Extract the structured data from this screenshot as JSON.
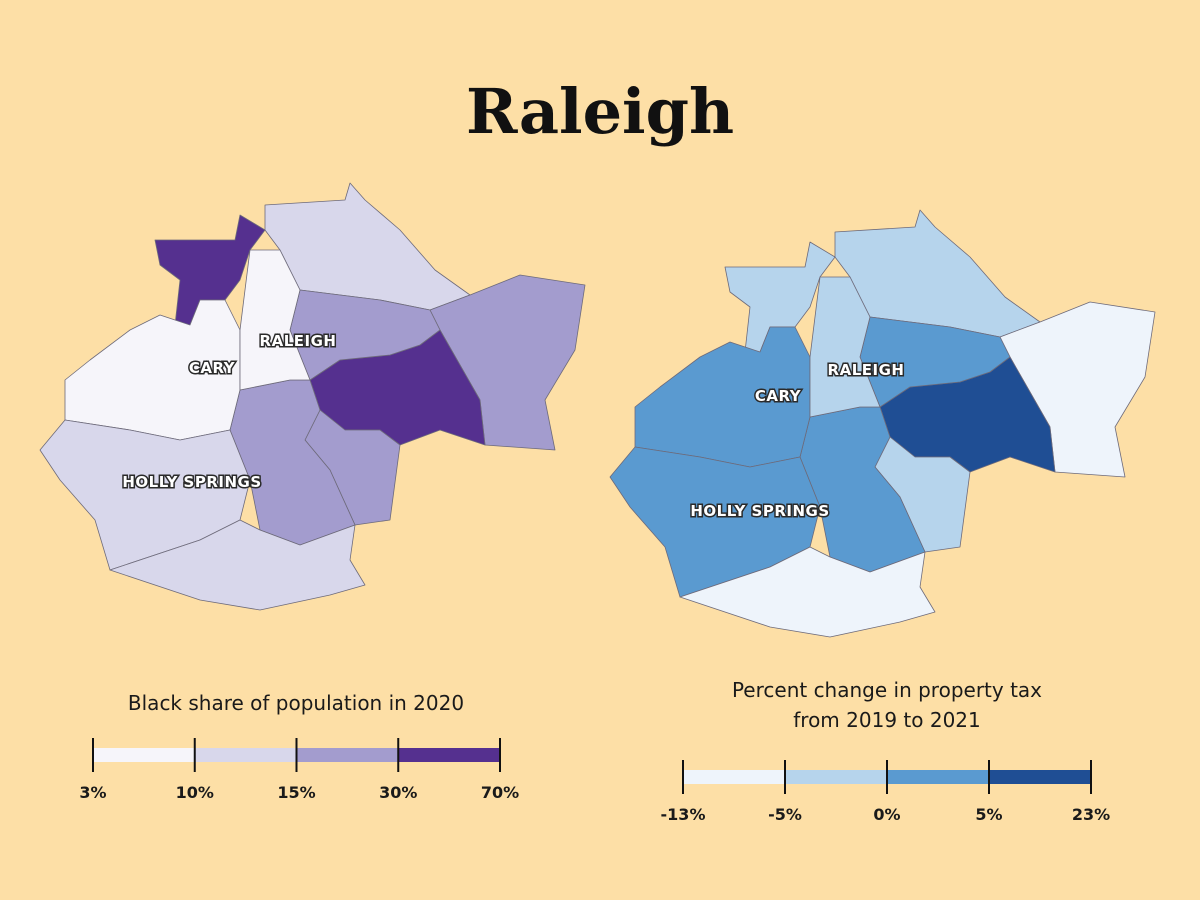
{
  "title": "Raleigh",
  "maps": [
    {
      "legend_title": [
        "Black share of population in 2020"
      ],
      "breaks": [
        "3%",
        "10%",
        "15%",
        "30%",
        "70%"
      ],
      "colors": [
        "#f6f5fa",
        "#d8d7eb",
        "#a39cce",
        "#55308f"
      ],
      "labels": {
        "raleigh": "RALEIGH",
        "cary": "CARY",
        "holly_springs": "HOLLY SPRINGS"
      },
      "region_bins": [
        3,
        1,
        2,
        3,
        2,
        2,
        2,
        0,
        1,
        1,
        0
      ]
    },
    {
      "legend_title": [
        "Percent change in property tax",
        "from 2019 to 2021"
      ],
      "breaks": [
        "-13%",
        "-5%",
        "0%",
        "5%",
        "23%"
      ],
      "colors": [
        "#eef4fb",
        "#b6d4ec",
        "#5a9ad0",
        "#1f4e94"
      ],
      "labels": {
        "raleigh": "RALEIGH",
        "cary": "CARY",
        "holly_springs": "HOLLY SPRINGS"
      },
      "region_bins": [
        1,
        1,
        0,
        3,
        2,
        1,
        2,
        2,
        2,
        0,
        1
      ]
    }
  ]
}
